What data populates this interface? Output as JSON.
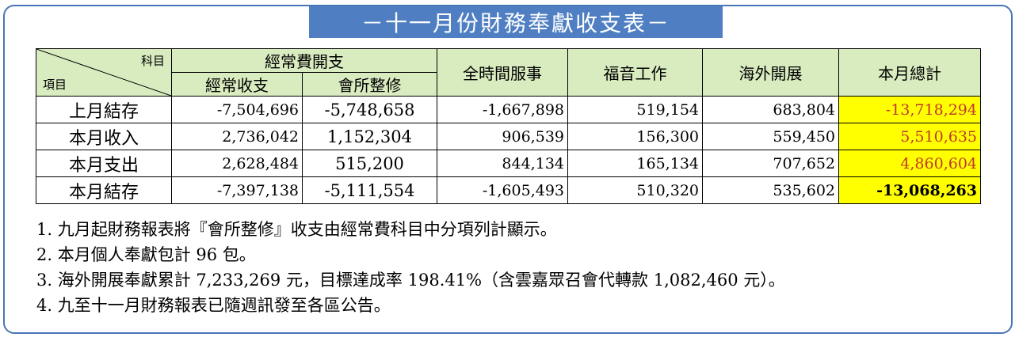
{
  "title": "－十一月份財務奉獻收支表－",
  "table": {
    "corner_top": "科目",
    "corner_bottom": "項目",
    "group_header": "經常費開支",
    "columns": [
      "經常收支",
      "會所整修",
      "全時間服事",
      "福音工作",
      "海外開展",
      "本月總計"
    ],
    "rows": [
      {
        "label": "上月結存",
        "values": [
          "-7,504,696",
          "-5,748,658",
          "-1,667,898",
          "519,154",
          "683,804",
          "-13,718,294"
        ]
      },
      {
        "label": "本月收入",
        "values": [
          "2,736,042",
          "1,152,304",
          "906,539",
          "156,300",
          "559,450",
          "5,510,635"
        ]
      },
      {
        "label": "本月支出",
        "values": [
          "2,628,484",
          "515,200",
          "844,134",
          "165,134",
          "707,652",
          "4,860,604"
        ]
      },
      {
        "label": "本月結存",
        "values": [
          "-7,397,138",
          "-5,111,554",
          "-1,605,493",
          "510,320",
          "535,602",
          "-13,068,263"
        ]
      }
    ]
  },
  "notes": [
    "1. 九月起財務報表將『會所整修』收支由經常費科目中分項列計顯示。",
    "2. 本月個人奉獻包計 96 包。",
    "3. 海外開展奉獻累計 7,233,269 元，目標達成率 198.41%（含雲嘉眾召會代轉款 1,082,460 元）。",
    "4. 九至十一月財務報表已隨週訊發至各區公告。"
  ],
  "colors": {
    "frame": "#4a76b6",
    "title_bg": "#4f7fc2",
    "header_bg": "#d9ecc0",
    "total_bg": "#ffff00",
    "total_text": "#c0392b"
  }
}
